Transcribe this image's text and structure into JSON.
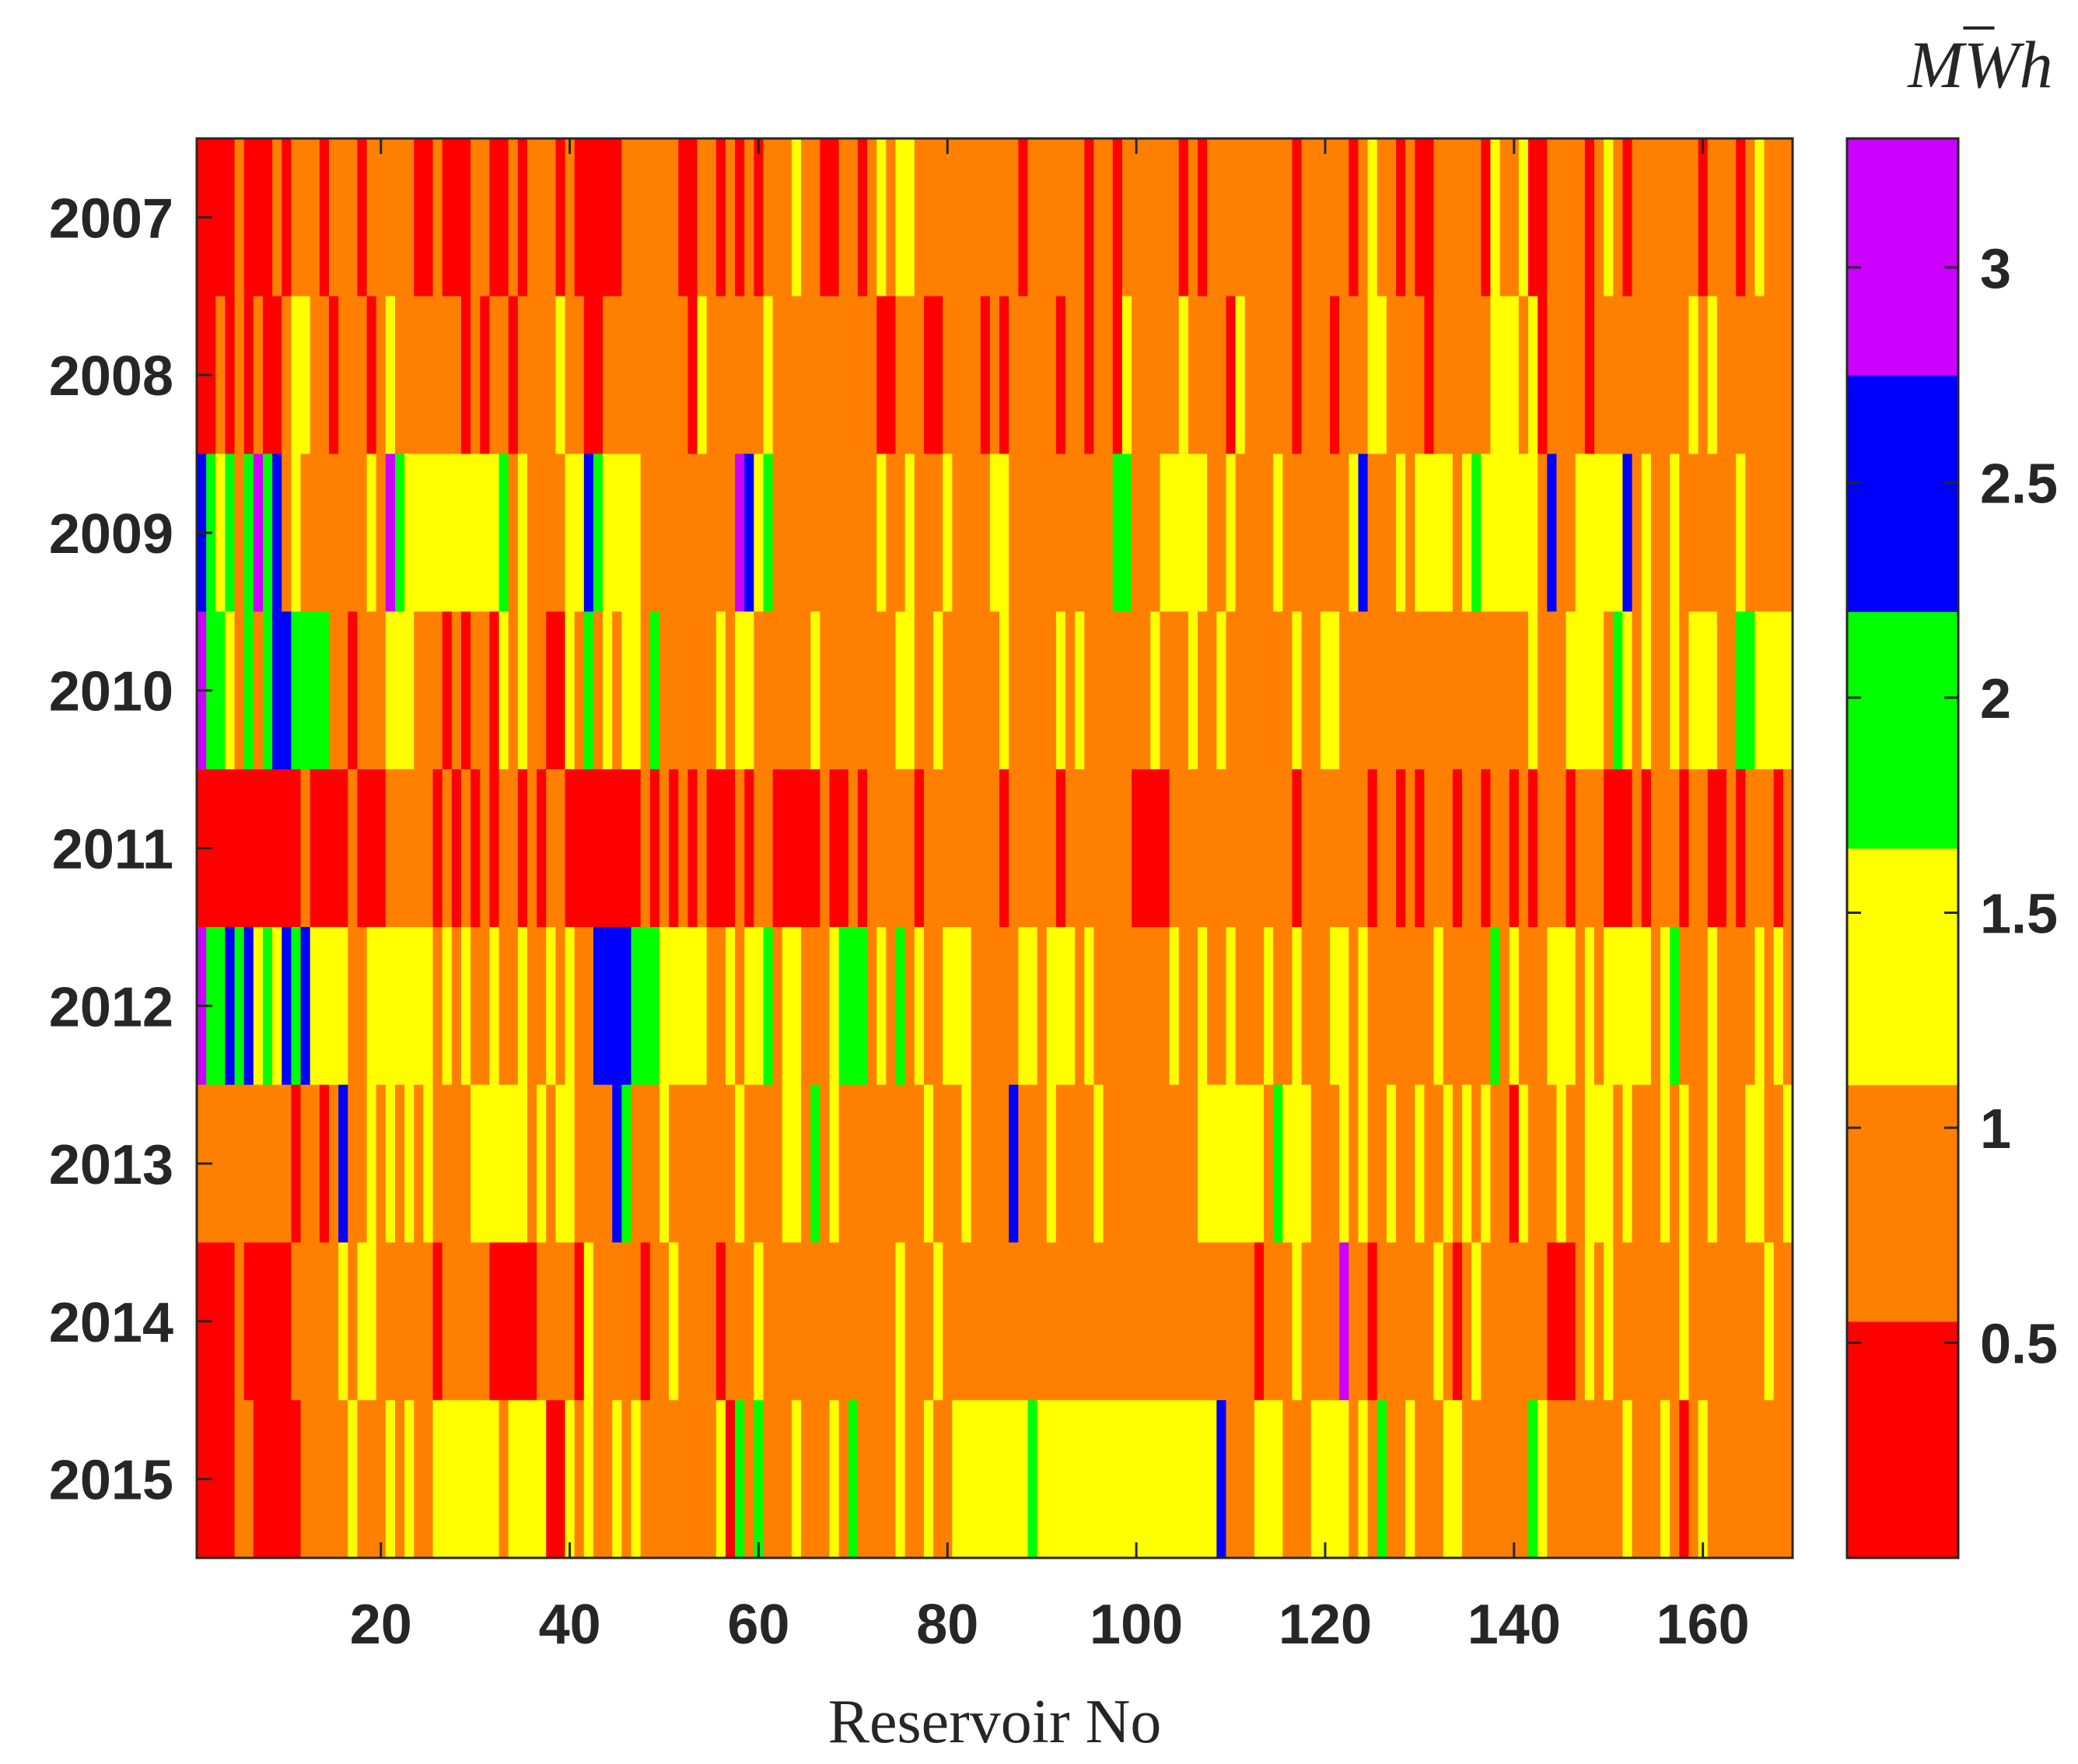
{
  "chart_data": {
    "type": "heatmap",
    "title": "",
    "xlabel": "Reservoir No",
    "ylabel": "",
    "x_range": [
      1,
      169
    ],
    "x_ticks": [
      20,
      40,
      60,
      80,
      100,
      120,
      140,
      160
    ],
    "y_categories": [
      "2007",
      "2008",
      "2009",
      "2010",
      "2011",
      "2012",
      "2013",
      "2014",
      "2015"
    ],
    "colorbar": {
      "label": "MW̄h",
      "label_base": "MWh",
      "range": [
        0,
        3.3
      ],
      "ticks": [
        0.5,
        1,
        1.5,
        2,
        2.5,
        3
      ],
      "bins": [
        {
          "color": "#FF0000",
          "range": [
            0,
            0.55
          ],
          "value": 0.3
        },
        {
          "color": "#FF8000",
          "range": [
            0.55,
            1.1
          ],
          "value": 0.85
        },
        {
          "color": "#FFFF00",
          "range": [
            1.1,
            1.65
          ],
          "value": 1.4
        },
        {
          "color": "#00FF00",
          "range": [
            1.65,
            2.2
          ],
          "value": 1.95
        },
        {
          "color": "#0000FF",
          "range": [
            2.2,
            2.75
          ],
          "value": 2.5
        },
        {
          "color": "#CC00FF",
          "range": [
            2.75,
            3.3
          ],
          "value": 3.05
        }
      ]
    },
    "rows": [
      {
        "year": "2007",
        "codes": "000010001011101110111110010001100101110100000111111001101010111211001101212211111111111011111101101111110101111111110111110121101001111102112001111012101111111011101211111110"
      },
      {
        "year": "2008",
        "codes": "001010100122110111012111111101011011112110011111111102111111211111111111001110011110101111101101102111112111102111110111011122111101111112221201111011111111112121111111111011"
      },
      {
        "year": "2009",
        "codes": "432313534121111111215322222222223121111224322221111111111542311111111111211211121111221111111111133111222221121111211111112411121222212322222214112222241211211111121111114"
      },
      {
        "year": "2010",
        "codes": "533213134433331101112221110101102121100213121221311111121221111112111111112211211111121111121211111112111211211111112112211111111111111111111211122221321211212221133222213"
      },
      {
        "year": "2011",
        "codes": "000000000001000010001111101010101101011000000001010101000101100000100101111101111111101111101111111000011111111111110111111101101011101101101011101110001011101100101110111011"
      },
      {
        "year": "2012",
        "codes": "533434232434222211222222212121121121121211444433322222112122312211123331213121122211111221222121111111121121121112112111221211111112111113121112221212222212311121111212122"
      },
      {
        "year": "2013",
        "codes": "111111111101101411212121211112222221212211114311121111111211112213121111111112111211114111211112111111111122222221322211121211211211212121102111211222121112121121112211211"
      },
      {
        "year": "2014",
        "codes": "000010000011111212211111101111100000111102111110112111101112111111111111112111211111111111111111111111111111111101112111151101111112101211111110001212111111121111111121111"
      },
      {
        "year": "2015",
        "codes": "0000110000011111211121211222222212222002121121211111111203131112111213111121121122222222322222222222222222224111222111222212131121112211111113211111111211121012111111111112210"
      }
    ]
  }
}
